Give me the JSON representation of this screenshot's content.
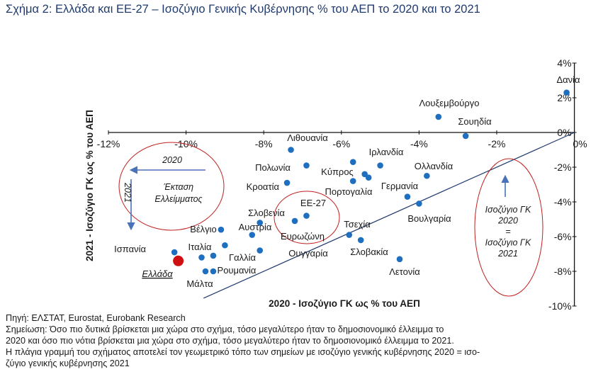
{
  "title": "Σχήμα 2: Ελλάδα και ΕΕ-27 – Ισοζύγιο Γενικής Κυβέρνησης % του ΑΕΠ το 2020 και το 2021",
  "chart_data": {
    "type": "scatter",
    "xlabel": "2020 - Ισοζύγιο ΓΚ ως % του ΑΕΠ",
    "ylabel": "2021 - Ισοζύγιο ΓΚ ως % του ΑΕΠ",
    "xlim": [
      -12,
      0
    ],
    "ylim": [
      -10,
      4
    ],
    "x_ticks": [
      "-12%",
      "-10%",
      "-8%",
      "-6%",
      "-4%",
      "-2%",
      "0%"
    ],
    "y_ticks": [
      "4%",
      "2%",
      "0%",
      "-2%",
      "-4%",
      "-6%",
      "-8%",
      "-10%"
    ],
    "diagonal": "y = x",
    "points": [
      {
        "label": "Δανία",
        "x": -0.2,
        "y": 2.3
      },
      {
        "label": "Λουξεμβούργο",
        "x": -3.5,
        "y": 0.9
      },
      {
        "label": "Σουηδία",
        "x": -2.8,
        "y": -0.2
      },
      {
        "label": "Λιθουανία",
        "x": -7.3,
        "y": -1.0
      },
      {
        "label": "Ιρλανδία",
        "x": -5.0,
        "y": -1.9
      },
      {
        "label": "Ολλανδία",
        "x": -3.8,
        "y": -2.5
      },
      {
        "label": "Πολωνία",
        "x": -6.9,
        "y": -1.9
      },
      {
        "label": "Κύπρος",
        "x": -5.7,
        "y": -1.7
      },
      {
        "label": "Κύπρος",
        "x": -5.4,
        "y": -2.4
      },
      {
        "label": "Πορτογαλία",
        "x": -5.7,
        "y": -2.8
      },
      {
        "label": "Πορτογαλία",
        "x": -5.3,
        "y": -2.6
      },
      {
        "label": "Κροατία",
        "x": -7.4,
        "y": -2.9
      },
      {
        "label": "Γερμανία",
        "x": -4.3,
        "y": -3.7
      },
      {
        "label": "Βουλγαρία",
        "x": -4.0,
        "y": -4.1
      },
      {
        "label": "ΕΕ-27",
        "x": -6.9,
        "y": -4.8
      },
      {
        "label": "Ευρωζώνη",
        "x": -7.2,
        "y": -5.1
      },
      {
        "label": "Σλοβενία",
        "x": -8.1,
        "y": -5.2
      },
      {
        "label": "Αυστρία",
        "x": -8.3,
        "y": -5.9
      },
      {
        "label": "Βέλγιο",
        "x": -9.1,
        "y": -5.6
      },
      {
        "label": "Τσεχία",
        "x": -5.8,
        "y": -5.9
      },
      {
        "label": "Σλοβακία",
        "x": -5.5,
        "y": -6.2
      },
      {
        "label": "Λετονία",
        "x": -4.5,
        "y": -7.3
      },
      {
        "label": "Ουγγαρία",
        "x": -8.1,
        "y": -6.8
      },
      {
        "label": "Ισπανία",
        "x": -10.3,
        "y": -6.9
      },
      {
        "label": "Ιταλία",
        "x": -9.6,
        "y": -7.2
      },
      {
        "label": "Ιταλία",
        "x": -9.3,
        "y": -7.1
      },
      {
        "label": "Γαλλία",
        "x": -9.0,
        "y": -6.5
      },
      {
        "label": "Ρουμανία",
        "x": -9.3,
        "y": -8.0
      },
      {
        "label": "Μάλτα",
        "x": -9.5,
        "y": -8.0
      },
      {
        "label": "Ελλάδα",
        "x": -10.2,
        "y": -7.4,
        "highlight": true,
        "color": "#d01010"
      }
    ],
    "point_color": "#1f6fc0",
    "annotations": [
      {
        "text": "2020"
      },
      {
        "text": "2021"
      },
      {
        "text": "Έκταση Ελλείμματος",
        "lines": [
          "Έκταση",
          "Ελλείμματος"
        ]
      },
      {
        "text": "ΕΕ-27"
      },
      {
        "text": "Ευρωζώνη"
      },
      {
        "text": "Ισοζύγιο ΓΚ 2020 = Ισοζύγιο ΓΚ 2021",
        "lines": [
          "Ισοζύγιο ΓΚ",
          "2020",
          "=",
          "Ισοζύγιο ΓΚ",
          "2021"
        ]
      }
    ]
  },
  "notes": {
    "source": "Πηγή: ΕΛΣΤΑΤ, Eurostat, Eurobank Research",
    "note_lines": [
      "Σημείωση: Όσο πιο δυτικά βρίσκεται μια χώρα στο σχήμα, τόσο μεγαλύτερο ήταν το δημοσιονομικό έλλειμμα το",
      "2020 και όσο πιο νότια βρίσκεται μια χώρα στο σχήμα, τόσο μεγαλύτερο ήταν το δημοσιονομικό έλλειμμα το 2021.",
      "Η πλάγια γραμμή του σχήματος αποτελεί τον γεωμετρικό τόπο των σημείων με ισοζύγιο γενικής κυβέρνησης 2020 = ισο-",
      "ζύγιο γενικής κυβέρνησης 2021"
    ]
  }
}
